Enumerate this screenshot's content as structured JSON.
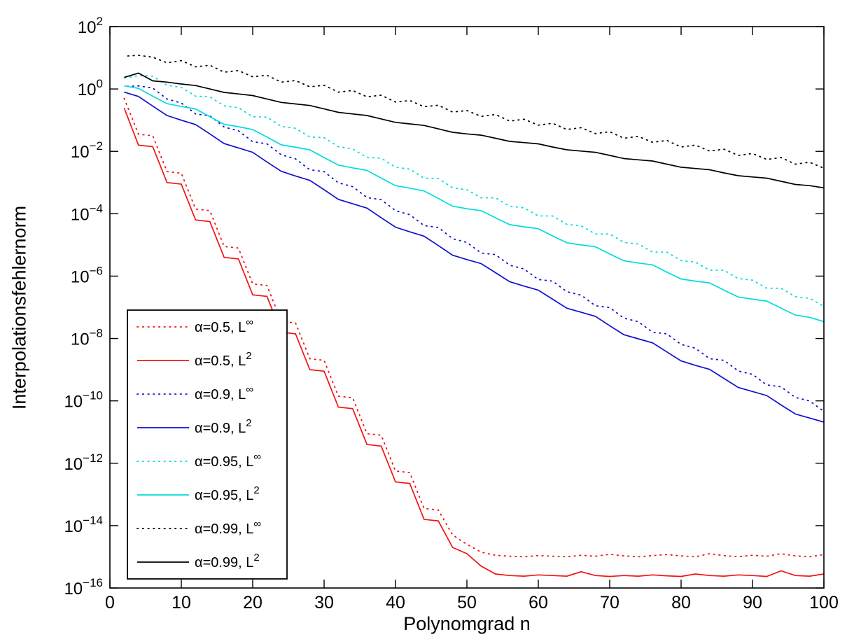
{
  "chart_data": {
    "type": "line",
    "title": "",
    "x_axis": {
      "label": "Polynomgrad n",
      "range": [
        0,
        100
      ],
      "ticks": [
        0,
        10,
        20,
        30,
        40,
        50,
        60,
        70,
        80,
        90,
        100
      ]
    },
    "y_axis": {
      "label": "Interpolationsfehlernorm",
      "scale": "log10",
      "tick_mantissa": "10",
      "tick_exponents": [
        2,
        0,
        -2,
        -4,
        -6,
        -8,
        -10,
        -12,
        -14,
        -16
      ],
      "range_exponents": [
        -16,
        2
      ]
    },
    "grid": false,
    "legend_position": "lower-left",
    "x": [
      2,
      4,
      6,
      8,
      10,
      12,
      14,
      16,
      18,
      20,
      22,
      24,
      26,
      28,
      30,
      32,
      34,
      36,
      38,
      40,
      42,
      44,
      46,
      48,
      50,
      52,
      54,
      56,
      58,
      60,
      62,
      64,
      66,
      68,
      70,
      72,
      74,
      76,
      78,
      80,
      82,
      84,
      86,
      88,
      90,
      92,
      94,
      96,
      98,
      100
    ],
    "series": [
      {
        "id": "alpha05-linf",
        "label_base": "α=0.5, L",
        "label_sup": "∞",
        "color": "#f31212",
        "style": "dotted",
        "log10_values": [
          -0.3,
          -1.45,
          -1.5,
          -2.65,
          -2.7,
          -3.85,
          -3.9,
          -5.05,
          -5.1,
          -6.25,
          -6.3,
          -7.45,
          -7.5,
          -8.65,
          -8.7,
          -9.85,
          -9.9,
          -11.05,
          -11.1,
          -12.25,
          -12.3,
          -13.45,
          -13.5,
          -14.3,
          -14.6,
          -14.85,
          -14.95,
          -14.98,
          -15.0,
          -14.96,
          -14.98,
          -15.0,
          -14.95,
          -14.98,
          -14.92,
          -14.97,
          -15.0,
          -14.96,
          -14.93,
          -14.97,
          -15.0,
          -14.9,
          -14.96,
          -15.0,
          -14.95,
          -14.98,
          -14.9,
          -14.97,
          -15.0,
          -14.93
        ]
      },
      {
        "id": "alpha05-l2",
        "label_base": "α=0.5, L",
        "label_sup": "2",
        "color": "#f31212",
        "style": "solid",
        "log10_values": [
          -0.61,
          -1.8,
          -1.85,
          -3.0,
          -3.05,
          -4.2,
          -4.25,
          -5.4,
          -5.45,
          -6.6,
          -6.65,
          -7.8,
          -7.85,
          -9.0,
          -9.05,
          -10.2,
          -10.25,
          -11.4,
          -11.45,
          -12.6,
          -12.65,
          -13.8,
          -13.85,
          -14.7,
          -14.9,
          -15.3,
          -15.55,
          -15.6,
          -15.62,
          -15.58,
          -15.6,
          -15.62,
          -15.48,
          -15.6,
          -15.63,
          -15.6,
          -15.62,
          -15.58,
          -15.61,
          -15.63,
          -15.55,
          -15.6,
          -15.62,
          -15.58,
          -15.6,
          -15.63,
          -15.45,
          -15.6,
          -15.62,
          -15.55
        ]
      },
      {
        "id": "alpha09-linf",
        "label_base": "α=0.9, L",
        "label_sup": "∞",
        "color": "#1010d0",
        "style": "dotted",
        "log10_values": [
          0.08,
          0.1,
          0.03,
          -0.32,
          -0.45,
          -0.8,
          -0.86,
          -1.22,
          -1.34,
          -1.69,
          -1.76,
          -2.11,
          -2.24,
          -2.59,
          -2.65,
          -3.01,
          -3.13,
          -3.48,
          -3.55,
          -3.9,
          -4.03,
          -4.38,
          -4.44,
          -4.8,
          -4.92,
          -5.26,
          -5.31,
          -5.65,
          -5.77,
          -6.11,
          -6.16,
          -6.5,
          -6.61,
          -6.95,
          -7.01,
          -7.35,
          -7.46,
          -7.8,
          -7.85,
          -8.19,
          -8.31,
          -8.65,
          -8.7,
          -9.04,
          -9.15,
          -9.49,
          -9.55,
          -9.89,
          -10.0,
          -10.34
        ]
      },
      {
        "id": "alpha09-l2",
        "label_base": "α=0.9, L",
        "label_sup": "2",
        "color": "#1010d0",
        "style": "solid",
        "log10_values": [
          -0.1,
          -0.24,
          -0.55,
          -0.85,
          -1.0,
          -1.14,
          -1.44,
          -1.75,
          -1.89,
          -2.03,
          -2.34,
          -2.64,
          -2.79,
          -2.93,
          -3.23,
          -3.54,
          -3.68,
          -3.82,
          -4.13,
          -4.43,
          -4.58,
          -4.72,
          -5.02,
          -5.33,
          -5.47,
          -5.6,
          -5.89,
          -6.18,
          -6.32,
          -6.45,
          -6.74,
          -7.03,
          -7.16,
          -7.29,
          -7.59,
          -7.88,
          -8.01,
          -8.14,
          -8.43,
          -8.72,
          -8.86,
          -8.99,
          -9.28,
          -9.57,
          -9.7,
          -9.83,
          -10.13,
          -10.42,
          -10.55,
          -10.68
        ]
      },
      {
        "id": "alpha095-linf",
        "label_base": "α=0.95, L",
        "label_sup": "∞",
        "color": "#00dcdc",
        "style": "dotted",
        "log10_values": [
          0.35,
          0.43,
          0.41,
          0.12,
          0.05,
          -0.23,
          -0.25,
          -0.54,
          -0.6,
          -0.89,
          -0.9,
          -1.2,
          -1.26,
          -1.54,
          -1.56,
          -1.85,
          -1.92,
          -2.2,
          -2.22,
          -2.51,
          -2.57,
          -2.86,
          -2.87,
          -3.17,
          -3.23,
          -3.49,
          -3.49,
          -3.76,
          -3.81,
          -4.07,
          -4.07,
          -4.34,
          -4.39,
          -4.65,
          -4.65,
          -4.92,
          -4.97,
          -5.23,
          -5.23,
          -5.5,
          -5.55,
          -5.81,
          -5.81,
          -6.08,
          -6.13,
          -6.39,
          -6.39,
          -6.66,
          -6.71,
          -6.97
        ]
      },
      {
        "id": "alpha095-l2",
        "label_base": "α=0.95, L",
        "label_sup": "2",
        "color": "#00dcdc",
        "style": "solid",
        "log10_values": [
          0.1,
          0.02,
          -0.23,
          -0.47,
          -0.56,
          -0.64,
          -0.89,
          -1.13,
          -1.21,
          -1.3,
          -1.54,
          -1.79,
          -1.87,
          -1.95,
          -2.2,
          -2.44,
          -2.53,
          -2.61,
          -2.86,
          -3.1,
          -3.18,
          -3.27,
          -3.51,
          -3.76,
          -3.84,
          -3.9,
          -4.13,
          -4.35,
          -4.42,
          -4.48,
          -4.71,
          -4.93,
          -5.0,
          -5.06,
          -5.29,
          -5.51,
          -5.58,
          -5.64,
          -5.87,
          -6.09,
          -6.16,
          -6.22,
          -6.45,
          -6.67,
          -6.74,
          -6.8,
          -7.03,
          -7.25,
          -7.32,
          -7.46
        ]
      },
      {
        "id": "alpha099-linf",
        "label_base": "α=0.99, L",
        "label_sup": "∞",
        "color": "#000000",
        "style": "dotted",
        "log10_values": [
          1.05,
          1.08,
          1.02,
          0.84,
          0.91,
          0.71,
          0.76,
          0.54,
          0.59,
          0.39,
          0.44,
          0.22,
          0.27,
          0.07,
          0.12,
          -0.1,
          -0.05,
          -0.25,
          -0.2,
          -0.42,
          -0.37,
          -0.57,
          -0.52,
          -0.74,
          -0.69,
          -0.88,
          -0.82,
          -1.03,
          -0.97,
          -1.16,
          -1.1,
          -1.3,
          -1.24,
          -1.43,
          -1.37,
          -1.58,
          -1.52,
          -1.71,
          -1.65,
          -1.86,
          -1.8,
          -1.99,
          -1.93,
          -2.13,
          -2.07,
          -2.26,
          -2.2,
          -2.41,
          -2.35,
          -2.54
        ]
      },
      {
        "id": "alpha099-l2",
        "label_base": "α=0.99, L",
        "label_sup": "2",
        "color": "#000000",
        "style": "solid",
        "log10_values": [
          0.37,
          0.51,
          0.26,
          0.22,
          0.16,
          0.11,
          0.0,
          -0.11,
          -0.16,
          -0.21,
          -0.32,
          -0.43,
          -0.48,
          -0.53,
          -0.64,
          -0.75,
          -0.8,
          -0.85,
          -0.96,
          -1.07,
          -1.12,
          -1.17,
          -1.28,
          -1.39,
          -1.44,
          -1.48,
          -1.58,
          -1.68,
          -1.72,
          -1.76,
          -1.86,
          -1.95,
          -1.99,
          -2.03,
          -2.13,
          -2.23,
          -2.27,
          -2.31,
          -2.41,
          -2.51,
          -2.55,
          -2.59,
          -2.69,
          -2.78,
          -2.82,
          -2.86,
          -2.96,
          -3.06,
          -3.1,
          -3.17
        ]
      }
    ]
  }
}
